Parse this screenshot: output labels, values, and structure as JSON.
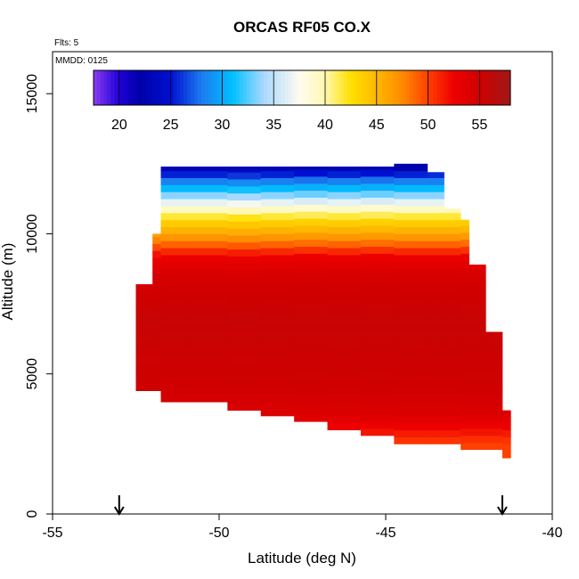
{
  "chart_data": {
    "type": "heatmap",
    "title": "ORCAS RF05 CO.X",
    "annotations": {
      "flights": "Flts: 5",
      "date": "MMDD: 0125"
    },
    "xlabel": "Latitude (deg N)",
    "ylabel": "Altitude (m)",
    "xlim": [
      -55,
      -40
    ],
    "ylim": [
      0,
      16500
    ],
    "x_ticks": [
      -55,
      -50,
      -45,
      -40
    ],
    "x_tick_labels": [
      "-55",
      "-50",
      "-45",
      "-40"
    ],
    "y_ticks": [
      0,
      5000,
      10000,
      15000
    ],
    "y_tick_labels": [
      "0",
      "5000",
      "10000",
      "15000"
    ],
    "colorbar": {
      "min": 17.5,
      "max": 58,
      "ticks": [
        20,
        25,
        30,
        35,
        40,
        45,
        50,
        55
      ],
      "tick_labels": [
        "20",
        "25",
        "30",
        "35",
        "40",
        "45",
        "50",
        "55"
      ],
      "stops": [
        {
          "v": 17.5,
          "c": "#8a3cf0"
        },
        {
          "v": 20,
          "c": "#1f00d8"
        },
        {
          "v": 22,
          "c": "#0000a8"
        },
        {
          "v": 25,
          "c": "#0010d0"
        },
        {
          "v": 28,
          "c": "#1c7bf0"
        },
        {
          "v": 31,
          "c": "#00c0ff"
        },
        {
          "v": 34,
          "c": "#a8d8ff"
        },
        {
          "v": 37.5,
          "c": "#fffcf0"
        },
        {
          "v": 40,
          "c": "#fff8b0"
        },
        {
          "v": 42.5,
          "c": "#ffe000"
        },
        {
          "v": 45,
          "c": "#ffb800"
        },
        {
          "v": 47.5,
          "c": "#ff8a00"
        },
        {
          "v": 50,
          "c": "#ff4000"
        },
        {
          "v": 52.5,
          "c": "#ee0000"
        },
        {
          "v": 55,
          "c": "#d00000"
        },
        {
          "v": 58,
          "c": "#a01818"
        }
      ]
    },
    "field": {
      "columns": [
        {
          "x0": -52.5,
          "x1": -52.0,
          "ybot": 4400,
          "ytop": 8200
        },
        {
          "x0": -52.0,
          "x1": -51.75,
          "ybot": 4400,
          "ytop": 10000
        },
        {
          "x0": -51.75,
          "x1": -51.0,
          "ybot": 4000,
          "ytop": 12400
        },
        {
          "x0": -51.0,
          "x1": -49.75,
          "ybot": 4000,
          "ytop": 12400
        },
        {
          "x0": -49.75,
          "x1": -48.75,
          "ybot": 3700,
          "ytop": 12400
        },
        {
          "x0": -48.75,
          "x1": -47.75,
          "ybot": 3500,
          "ytop": 12400
        },
        {
          "x0": -47.75,
          "x1": -46.75,
          "ybot": 3300,
          "ytop": 12400
        },
        {
          "x0": -46.75,
          "x1": -45.75,
          "ybot": 3000,
          "ytop": 12400
        },
        {
          "x0": -45.75,
          "x1": -44.75,
          "ybot": 2800,
          "ytop": 12400
        },
        {
          "x0": -44.75,
          "x1": -43.75,
          "ybot": 2500,
          "ytop": 12500
        },
        {
          "x0": -43.75,
          "x1": -43.25,
          "ybot": 2500,
          "ytop": 12200
        },
        {
          "x0": -43.25,
          "x1": -42.75,
          "ybot": 2500,
          "ytop": 10900
        },
        {
          "x0": -42.75,
          "x1": -42.5,
          "ybot": 2300,
          "ytop": 10500
        },
        {
          "x0": -42.5,
          "x1": -42.0,
          "ybot": 2300,
          "ytop": 8900
        },
        {
          "x0": -42.0,
          "x1": -41.5,
          "ybot": 2300,
          "ytop": 6500
        },
        {
          "x0": -41.5,
          "x1": -41.25,
          "ybot": 2000,
          "ytop": 3700
        }
      ],
      "value_profile": [
        {
          "alt": 0,
          "v": 50
        },
        {
          "alt": 2500,
          "v": 50
        },
        {
          "alt": 3000,
          "v": 52
        },
        {
          "alt": 3500,
          "v": 54
        },
        {
          "alt": 4500,
          "v": 55
        },
        {
          "alt": 7000,
          "v": 55.5
        },
        {
          "alt": 8500,
          "v": 54.5
        },
        {
          "alt": 9200,
          "v": 52.5
        },
        {
          "alt": 9600,
          "v": 49
        },
        {
          "alt": 10000,
          "v": 46
        },
        {
          "alt": 10500,
          "v": 43
        },
        {
          "alt": 11000,
          "v": 38
        },
        {
          "alt": 11500,
          "v": 32
        },
        {
          "alt": 12000,
          "v": 27
        },
        {
          "alt": 12400,
          "v": 22
        }
      ]
    },
    "markers": {
      "arrows_lat": [
        -53.0,
        -41.5
      ]
    }
  }
}
